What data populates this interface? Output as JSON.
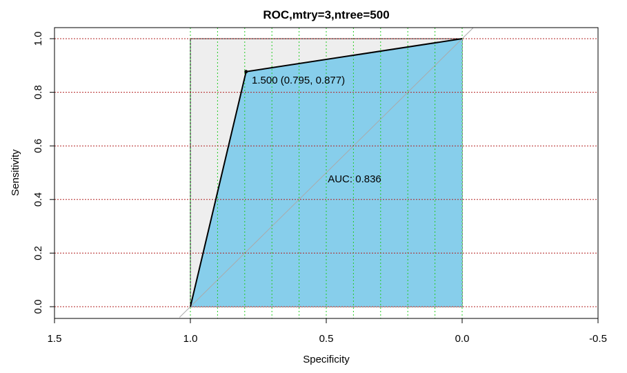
{
  "chart_data": {
    "type": "line",
    "title": "ROC,mtry=3,ntree=500",
    "xlabel": "Specificity",
    "ylabel": "Sensitivity",
    "xlim": [
      1.5,
      -0.5
    ],
    "ylim": [
      0,
      1
    ],
    "x_axis_reversed": true,
    "x_ticks": [
      1.5,
      1.0,
      0.5,
      0.0,
      -0.5
    ],
    "x_tick_labels": [
      "1.5",
      "1.0",
      "0.5",
      "0.0",
      "-0.5"
    ],
    "y_ticks": [
      0.0,
      0.2,
      0.4,
      0.6,
      0.8,
      1.0
    ],
    "y_tick_labels": [
      "0.0",
      "0.2",
      "0.4",
      "0.6",
      "0.8",
      "1.0"
    ],
    "x_grid": [
      1.0,
      0.9,
      0.8,
      0.7,
      0.6,
      0.5,
      0.4,
      0.3,
      0.2,
      0.1,
      0.0
    ],
    "y_grid": [
      0.0,
      0.2,
      0.4,
      0.6,
      0.8,
      1.0
    ],
    "series": [
      {
        "specificity": [
          1.0,
          0.795,
          0.0
        ],
        "sensitivity": [
          0.0,
          0.877,
          1.0
        ]
      }
    ],
    "threshold_point": {
      "specificity": 0.795,
      "sensitivity": 0.877,
      "label": "1.500 (0.795, 0.877)"
    },
    "auc_label": "AUC: 0.836",
    "auc_label_pos": {
      "specificity": 0.5,
      "sensitivity": 0.48
    },
    "colors": {
      "auc_fill": "#87ceeb",
      "max_auc_fill": "#eeeeee",
      "roc_line": "#000000",
      "diagonal": "#aaaaaa",
      "h_grid": "#b22222",
      "v_grid": "#22cc22"
    }
  }
}
